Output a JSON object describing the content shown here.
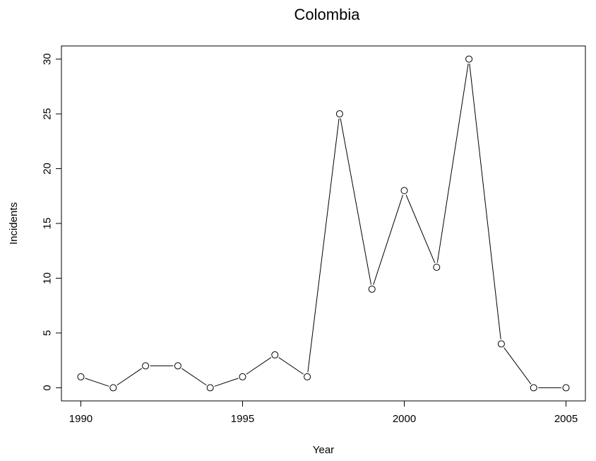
{
  "chart_data": {
    "type": "line",
    "title": "Colombia",
    "xlabel": "Year",
    "ylabel": "Incidents",
    "x": [
      1990,
      1991,
      1992,
      1993,
      1994,
      1995,
      1996,
      1997,
      1998,
      1999,
      2000,
      2001,
      2002,
      2003,
      2004,
      2005
    ],
    "series": [
      {
        "values": [
          1,
          0,
          2,
          2,
          0,
          1,
          3,
          1,
          25,
          9,
          18,
          11,
          30,
          4,
          0,
          0
        ]
      }
    ],
    "xlim": [
      1989.4,
      2005.6
    ],
    "ylim": [
      -1.2,
      31.2
    ],
    "xticks": [
      1990,
      1995,
      2000,
      2005
    ],
    "yticks": [
      0,
      5,
      10,
      15,
      20,
      25,
      30
    ],
    "marker": "open-circle",
    "color": "#000000",
    "grid": false,
    "legend": "none"
  }
}
